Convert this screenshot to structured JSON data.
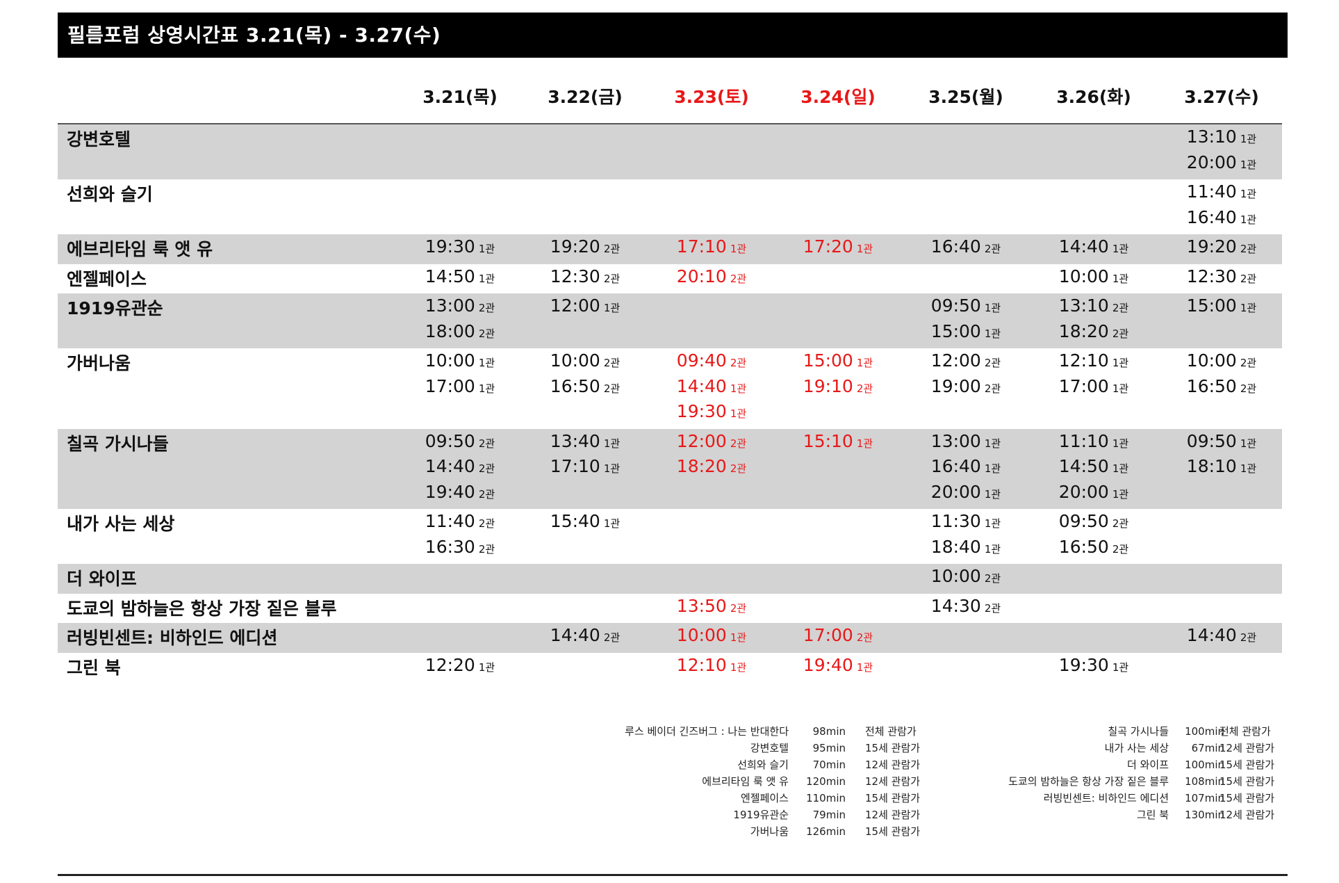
{
  "title": "필름포럼 상영시간표 3.21(목) - 3.27(수)",
  "colors": {
    "weekend": "#e81818",
    "shade": "#d3d3d3",
    "bar": "#000000"
  },
  "days": [
    {
      "label": "3.21(목)",
      "weekend": false
    },
    {
      "label": "3.22(금)",
      "weekend": false
    },
    {
      "label": "3.23(토)",
      "weekend": true
    },
    {
      "label": "3.24(일)",
      "weekend": true
    },
    {
      "label": "3.25(월)",
      "weekend": false
    },
    {
      "label": "3.26(화)",
      "weekend": false
    },
    {
      "label": "3.27(수)",
      "weekend": false
    }
  ],
  "films": [
    {
      "title": "강변호텔",
      "shade": true,
      "shows": [
        [],
        [],
        [],
        [],
        [],
        [],
        [
          [
            "13:10",
            "1관"
          ],
          [
            "20:00",
            "1관"
          ]
        ]
      ]
    },
    {
      "title": "선희와 슬기",
      "shade": false,
      "shows": [
        [],
        [],
        [],
        [],
        [],
        [],
        [
          [
            "11:40",
            "1관"
          ],
          [
            "16:40",
            "1관"
          ]
        ]
      ]
    },
    {
      "title": "에브리타임 룩 앳 유",
      "shade": true,
      "shows": [
        [
          [
            "19:30",
            "1관"
          ]
        ],
        [
          [
            "19:20",
            "2관"
          ]
        ],
        [
          [
            "17:10",
            "1관"
          ]
        ],
        [
          [
            "17:20",
            "1관"
          ]
        ],
        [
          [
            "16:40",
            "2관"
          ]
        ],
        [
          [
            "14:40",
            "1관"
          ]
        ],
        [
          [
            "19:20",
            "2관"
          ]
        ]
      ]
    },
    {
      "title": "엔젤페이스",
      "shade": false,
      "shows": [
        [
          [
            "14:50",
            "1관"
          ]
        ],
        [
          [
            "12:30",
            "2관"
          ]
        ],
        [
          [
            "20:10",
            "2관"
          ]
        ],
        [],
        [],
        [
          [
            "10:00",
            "1관"
          ]
        ],
        [
          [
            "12:30",
            "2관"
          ]
        ]
      ]
    },
    {
      "title": "1919유관순",
      "shade": true,
      "shows": [
        [
          [
            "13:00",
            "2관"
          ],
          [
            "18:00",
            "2관"
          ]
        ],
        [
          [
            "12:00",
            "1관"
          ]
        ],
        [],
        [],
        [
          [
            "09:50",
            "1관"
          ],
          [
            "15:00",
            "1관"
          ]
        ],
        [
          [
            "13:10",
            "2관"
          ],
          [
            "18:20",
            "2관"
          ]
        ],
        [
          [
            "15:00",
            "1관"
          ]
        ]
      ]
    },
    {
      "title": "가버나움",
      "shade": false,
      "shows": [
        [
          [
            "10:00",
            "1관"
          ],
          [
            "17:00",
            "1관"
          ]
        ],
        [
          [
            "10:00",
            "2관"
          ],
          [
            "16:50",
            "2관"
          ]
        ],
        [
          [
            "09:40",
            "2관"
          ],
          [
            "14:40",
            "1관"
          ],
          [
            "19:30",
            "1관"
          ]
        ],
        [
          [
            "15:00",
            "1관"
          ],
          [
            "19:10",
            "2관"
          ]
        ],
        [
          [
            "12:00",
            "2관"
          ],
          [
            "19:00",
            "2관"
          ]
        ],
        [
          [
            "12:10",
            "1관"
          ],
          [
            "17:00",
            "1관"
          ]
        ],
        [
          [
            "10:00",
            "2관"
          ],
          [
            "16:50",
            "2관"
          ]
        ]
      ]
    },
    {
      "title": "칠곡 가시나들",
      "shade": true,
      "shows": [
        [
          [
            "09:50",
            "2관"
          ],
          [
            "14:40",
            "2관"
          ],
          [
            "19:40",
            "2관"
          ]
        ],
        [
          [
            "13:40",
            "1관"
          ],
          [
            "17:10",
            "1관"
          ]
        ],
        [
          [
            "12:00",
            "2관"
          ],
          [
            "18:20",
            "2관"
          ]
        ],
        [
          [
            "15:10",
            "1관"
          ]
        ],
        [
          [
            "13:00",
            "1관"
          ],
          [
            "16:40",
            "1관"
          ],
          [
            "20:00",
            "1관"
          ]
        ],
        [
          [
            "11:10",
            "1관"
          ],
          [
            "14:50",
            "1관"
          ],
          [
            "20:00",
            "1관"
          ]
        ],
        [
          [
            "09:50",
            "1관"
          ],
          [
            "18:10",
            "1관"
          ]
        ]
      ]
    },
    {
      "title": "내가 사는 세상",
      "shade": false,
      "shows": [
        [
          [
            "11:40",
            "2관"
          ],
          [
            "16:30",
            "2관"
          ]
        ],
        [
          [
            "15:40",
            "1관"
          ]
        ],
        [],
        [],
        [
          [
            "11:30",
            "1관"
          ],
          [
            "18:40",
            "1관"
          ]
        ],
        [
          [
            "09:50",
            "2관"
          ],
          [
            "16:50",
            "2관"
          ]
        ],
        []
      ]
    },
    {
      "title": "더 와이프",
      "shade": true,
      "shows": [
        [],
        [],
        [],
        [],
        [
          [
            "10:00",
            "2관"
          ]
        ],
        [],
        []
      ]
    },
    {
      "title": "도쿄의 밤하늘은 항상 가장 짙은 블루",
      "shade": false,
      "shows": [
        [],
        [],
        [
          [
            "13:50",
            "2관"
          ]
        ],
        [],
        [
          [
            "14:30",
            "2관"
          ]
        ],
        [],
        []
      ]
    },
    {
      "title": "러빙빈센트: 비하인드 에디션",
      "shade": true,
      "shows": [
        [],
        [
          [
            "14:40",
            "2관"
          ]
        ],
        [
          [
            "10:00",
            "1관"
          ]
        ],
        [
          [
            "17:00",
            "2관"
          ]
        ],
        [],
        [],
        [
          [
            "14:40",
            "2관"
          ]
        ]
      ]
    },
    {
      "title": "그린 북",
      "shade": false,
      "shows": [
        [
          [
            "12:20",
            "1관"
          ]
        ],
        [],
        [
          [
            "12:10",
            "1관"
          ]
        ],
        [
          [
            "19:40",
            "1관"
          ]
        ],
        [],
        [
          [
            "19:30",
            "1관"
          ]
        ],
        []
      ]
    }
  ],
  "legend_left": [
    {
      "title": "루스 베이더 긴즈버그 : 나는 반대한다",
      "runtime": "98min",
      "rating": "전체 관람가"
    },
    {
      "title": "강변호텔",
      "runtime": "95min",
      "rating": "15세 관람가"
    },
    {
      "title": "선희와 슬기",
      "runtime": "70min",
      "rating": "12세 관람가"
    },
    {
      "title": "에브리타임 룩 앳 유",
      "runtime": "120min",
      "rating": "12세 관람가"
    },
    {
      "title": "엔젤페이스",
      "runtime": "110min",
      "rating": "15세 관람가"
    },
    {
      "title": "1919유관순",
      "runtime": "79min",
      "rating": "12세 관람가"
    },
    {
      "title": "가버나움",
      "runtime": "126min",
      "rating": "15세 관람가"
    }
  ],
  "legend_right": [
    {
      "title": "칠곡 가시나들",
      "runtime": "100min",
      "rating": "전체 관람가"
    },
    {
      "title": "내가 사는 세상",
      "runtime": "67min",
      "rating": "12세 관람가"
    },
    {
      "title": "더 와이프",
      "runtime": "100min",
      "rating": "15세 관람가"
    },
    {
      "title": "도쿄의 밤하늘은 항상 가장 짙은 블루",
      "runtime": "108min",
      "rating": "15세 관람가"
    },
    {
      "title": "러빙빈센트: 비하인드 에디션",
      "runtime": "107min",
      "rating": "15세 관람가"
    },
    {
      "title": "그린 북",
      "runtime": "130min",
      "rating": "12세 관람가"
    }
  ]
}
